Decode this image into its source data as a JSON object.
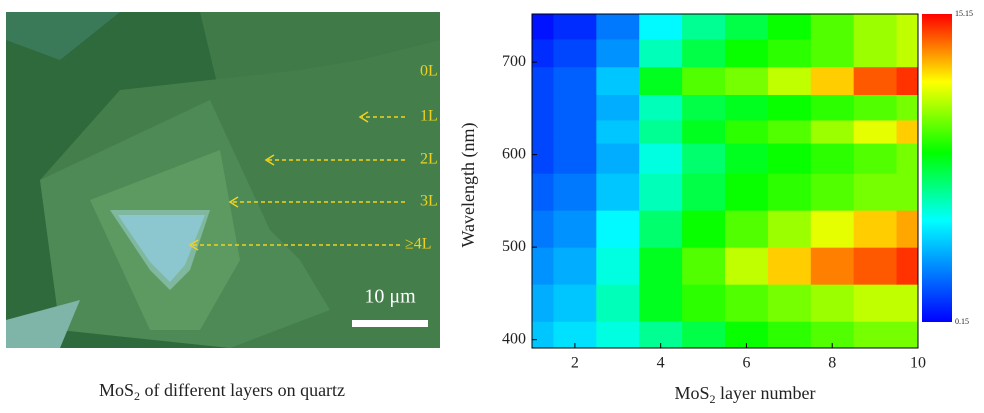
{
  "image_panel": {
    "layer_labels": [
      "0L",
      "1L",
      "2L",
      "3L",
      "≥4L"
    ],
    "scale_bar": "10 μm",
    "caption": {
      "main": "MoS",
      "sub": "2",
      "rest": " of different layers on quartz"
    }
  },
  "chart_data": {
    "type": "heatmap",
    "x_label": {
      "main": "MoS",
      "sub": "2",
      "rest": " layer number"
    },
    "y_label": "Wavelength (nm)",
    "x": [
      1,
      2,
      3,
      4,
      5,
      6,
      7,
      8,
      9,
      10
    ],
    "y": [
      400,
      440,
      480,
      520,
      560,
      600,
      625,
      650,
      680,
      710,
      740
    ],
    "z": [
      [
        4,
        4.5,
        5.5,
        6.5,
        7.5,
        8.5,
        9,
        9.5,
        10,
        10
      ],
      [
        3.5,
        4,
        6,
        8,
        9,
        9.5,
        10,
        10.5,
        11,
        11
      ],
      [
        3,
        3.5,
        5.5,
        8,
        9.5,
        11,
        12.5,
        13.5,
        14,
        14.5
      ],
      [
        2.5,
        3,
        5,
        7,
        8.5,
        9.5,
        10.5,
        11.5,
        12.5,
        13
      ],
      [
        2,
        2.5,
        4,
        6,
        7.5,
        8.5,
        9,
        9.5,
        10,
        10
      ],
      [
        1.5,
        2,
        3.5,
        5.5,
        7,
        8,
        8.5,
        9,
        9.5,
        10
      ],
      [
        1.5,
        2,
        4,
        6.5,
        8,
        9,
        9.5,
        10.5,
        11.5,
        12.5
      ],
      [
        1.5,
        2,
        3.5,
        6,
        7.5,
        8,
        8.5,
        9,
        9.5,
        10
      ],
      [
        1.5,
        2,
        4,
        8,
        9.5,
        10,
        11,
        12.5,
        14,
        14.5
      ],
      [
        1,
        1.5,
        3,
        6,
        7.5,
        8.5,
        9,
        9.5,
        10.5,
        11
      ],
      [
        0.5,
        1,
        2.5,
        5,
        6.5,
        7.5,
        8.5,
        9.5,
        10.5,
        11
      ]
    ],
    "xlim": [
      1,
      10
    ],
    "xticks": [
      2,
      4,
      6,
      8,
      10
    ],
    "ylim": [
      391,
      752
    ],
    "yticks": [
      400,
      500,
      600,
      700
    ],
    "clim": [
      0.15,
      15.15
    ],
    "cticks": [
      0.15,
      15.15
    ],
    "colormap": "jet"
  }
}
